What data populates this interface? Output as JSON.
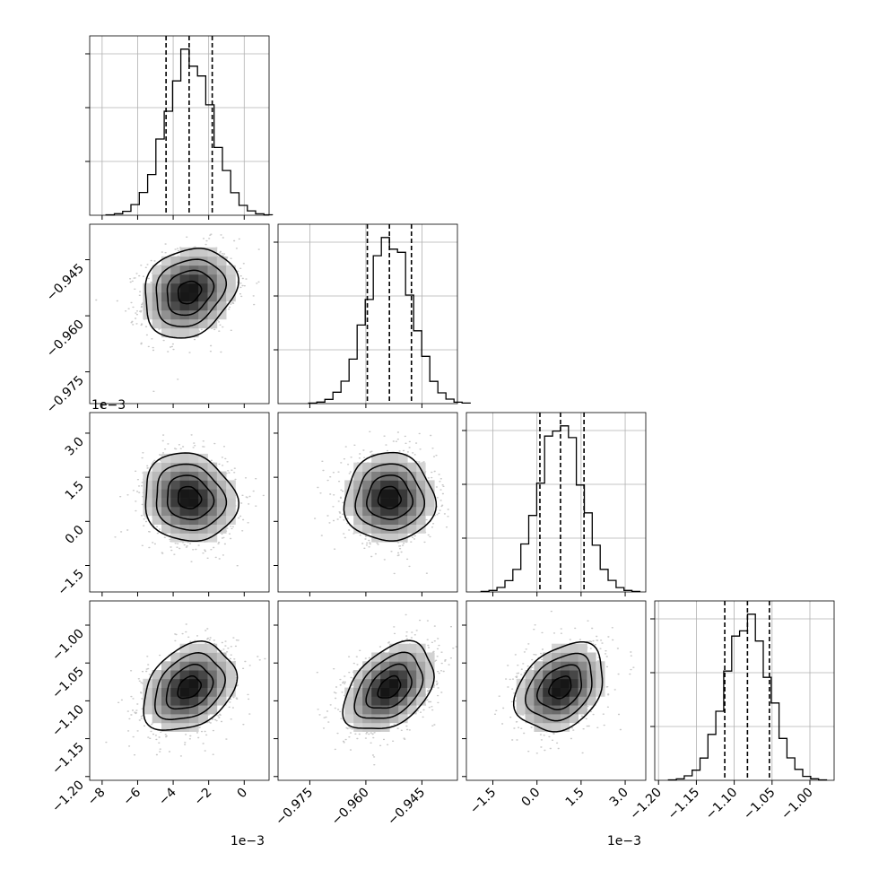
{
  "chart_data": {
    "type": "corner",
    "grid": true,
    "parameters": [
      {
        "index": 0,
        "range": [
          -0.0087,
          0.0014
        ],
        "ticks": [
          -0.008,
          -0.006,
          -0.004,
          -0.002,
          0.0
        ],
        "tick_labels": [
          "−8",
          "−6",
          "−4",
          "−2",
          "0"
        ],
        "offset_text": "1e−3",
        "median": -0.0031,
        "q16": -0.0044,
        "q84": -0.0018,
        "std": 0.0013
      },
      {
        "index": 1,
        "range": [
          -0.9835,
          -0.9355
        ],
        "ticks": [
          -0.975,
          -0.96,
          -0.945
        ],
        "tick_labels": [
          "−0.975",
          "−0.960",
          "−0.945"
        ],
        "offset_text": "",
        "median": -0.9537,
        "q16": -0.9596,
        "q84": -0.9478,
        "std": 0.006
      },
      {
        "index": 2,
        "range": [
          -0.0024,
          0.0037
        ],
        "ticks": [
          -0.0015,
          0.0,
          0.0015,
          0.003
        ],
        "tick_labels": [
          "−1.5",
          "0.0",
          "1.5",
          "3.0"
        ],
        "offset_text": "1e−3",
        "median": 0.0008,
        "q16": 0.0001,
        "q84": 0.0016,
        "std": 0.00075
      },
      {
        "index": 3,
        "range": [
          -1.205,
          -0.968
        ],
        "ticks": [
          -1.2,
          -1.15,
          -1.1,
          -1.05,
          -1.0
        ],
        "tick_labels": [
          "−1.20",
          "−1.15",
          "−1.10",
          "−1.05",
          "−1.00"
        ],
        "offset_text": "",
        "median": -1.0825,
        "q16": -1.1125,
        "q84": -1.0535,
        "std": 0.029
      }
    ],
    "correlations": [
      {
        "pair": [
          1,
          0
        ],
        "rho": 0.2
      },
      {
        "pair": [
          2,
          0
        ],
        "rho": -0.1
      },
      {
        "pair": [
          2,
          1
        ],
        "rho": 0.0
      },
      {
        "pair": [
          3,
          0
        ],
        "rho": 0.3
      },
      {
        "pair": [
          3,
          1
        ],
        "rho": 0.4
      },
      {
        "pair": [
          3,
          2
        ],
        "rho": 0.3
      }
    ],
    "diagonal_histogram_bins": 20,
    "contour_levels_sigma": [
      0.5,
      1.0,
      1.5,
      2.0
    ],
    "colors": {
      "axes": "#000000",
      "grid": "#b0b0b0",
      "points": "#9a9a9a",
      "contour": "#000000"
    }
  }
}
